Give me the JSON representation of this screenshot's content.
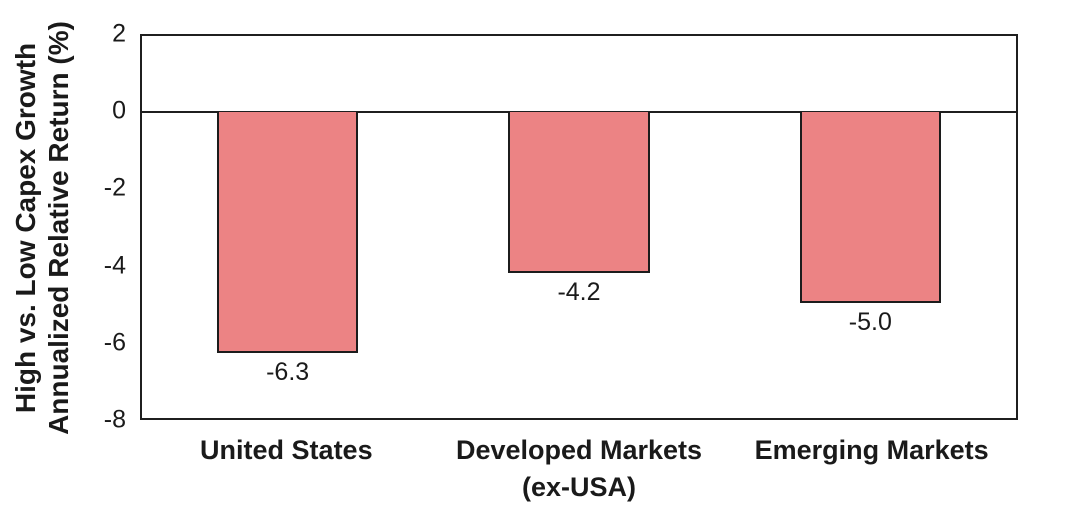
{
  "chart_data": {
    "type": "bar",
    "title": "",
    "xlabel": "",
    "ylabel": "High vs. Low Capex Growth Annualized Relative Return (%)",
    "ylabel_lines": [
      "High vs. Low Capex Growth",
      "Annualized Relative Return (%)"
    ],
    "categories": [
      "United States",
      "Developed Markets (ex-USA)",
      "Emerging Markets"
    ],
    "category_lines": [
      [
        "United States"
      ],
      [
        "Developed Markets",
        "(ex-USA)"
      ],
      [
        "Emerging Markets"
      ]
    ],
    "values": [
      -6.3,
      -4.2,
      -5.0
    ],
    "data_labels": [
      "-6.3",
      "-4.2",
      "-5.0"
    ],
    "ylim": [
      -8,
      2
    ],
    "yticks": [
      2,
      0,
      -2,
      -4,
      -6,
      -8
    ],
    "grid": false,
    "legend": null,
    "bar_color": "#EC8384",
    "bar_border_color": "#1c1c1c",
    "axis_color": "#1f1f1f",
    "text_color": "#1a1a1a",
    "background_color": "#ffffff"
  }
}
